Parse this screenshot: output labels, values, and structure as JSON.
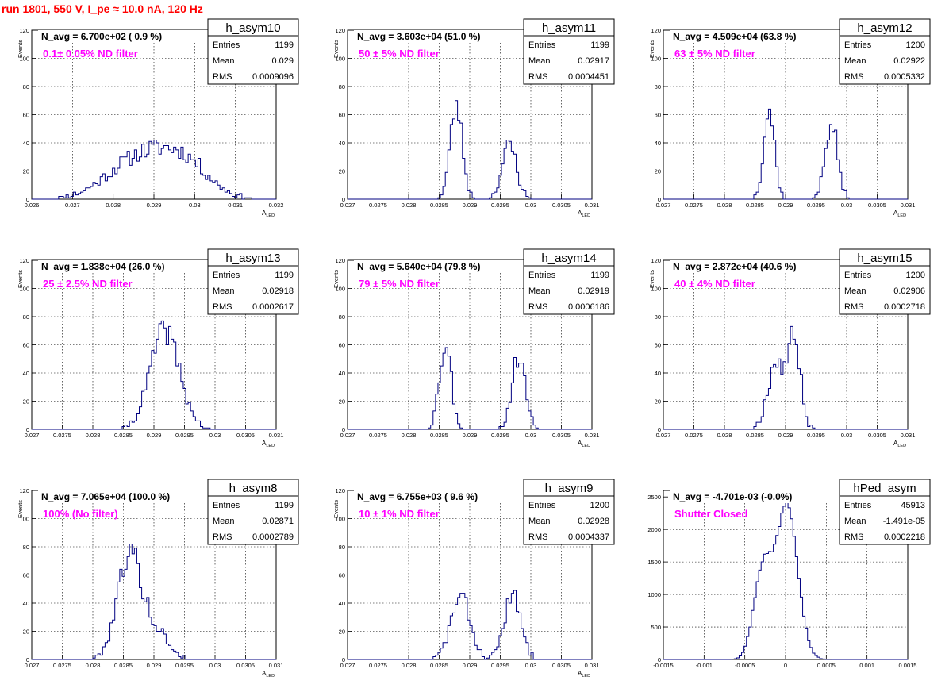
{
  "run_title": "run 1801,   550 V, I_pe ≈ 10.0 nA, 120 Hz",
  "chart_data": [
    {
      "type": "bar",
      "histogram": "h_asym10",
      "nav": "N_avg = 6.700e+02 ( 0.9 %)",
      "filter": "0.1± 0.05% ND filter",
      "stats": {
        "Entries": "1199",
        "Mean": "0.029",
        "RMS": "0.0009096"
      },
      "xlabel": "A_LED",
      "ylabel": "Events",
      "xlim": [
        0.026,
        0.032
      ],
      "ylim": [
        0,
        120
      ],
      "xticks": [
        "0.026",
        "0.027",
        "0.028",
        "0.029",
        "0.03",
        "0.031",
        "0.032"
      ],
      "yticks": [
        "0",
        "20",
        "40",
        "60",
        "80",
        "100",
        "120"
      ],
      "grid": true,
      "profile": [
        {
          "mu": 0.0287,
          "sigma": 0.0008,
          "amp": 30
        },
        {
          "mu": 0.0298,
          "sigma": 0.0006,
          "amp": 20
        }
      ],
      "bins": 100,
      "seed": 11
    },
    {
      "type": "bar",
      "histogram": "h_asym11",
      "nav": "N_avg = 3.603e+04 (51.0 %)",
      "filter": "50 ± 5% ND filter",
      "stats": {
        "Entries": "1199",
        "Mean": "0.02917",
        "RMS": "0.0004451"
      },
      "xlabel": "A_LED",
      "ylabel": "Events",
      "xlim": [
        0.027,
        0.031
      ],
      "ylim": [
        0,
        120
      ],
      "xticks": [
        "0.027",
        "0.0275",
        "0.028",
        "0.0285",
        "0.029",
        "0.0295",
        "0.03",
        "0.0305",
        "0.031"
      ],
      "yticks": [
        "0",
        "20",
        "40",
        "60",
        "80",
        "100",
        "120"
      ],
      "grid": true,
      "profile": [
        {
          "mu": 0.02878,
          "sigma": 0.0001,
          "amp": 66
        },
        {
          "mu": 0.02965,
          "sigma": 0.00012,
          "amp": 38
        }
      ],
      "bins": 100,
      "seed": 23
    },
    {
      "type": "bar",
      "histogram": "h_asym12",
      "nav": "N_avg = 4.509e+04 (63.8 %)",
      "filter": "63 ± 5% ND filter",
      "stats": {
        "Entries": "1200",
        "Mean": "0.02922",
        "RMS": "0.0005332"
      },
      "xlabel": "A_LED",
      "ylabel": "Events",
      "xlim": [
        0.027,
        0.031
      ],
      "ylim": [
        0,
        120
      ],
      "xticks": [
        "0.027",
        "0.0275",
        "0.028",
        "0.0285",
        "0.029",
        "0.0295",
        "0.03",
        "0.0305",
        "0.031"
      ],
      "yticks": [
        "0",
        "20",
        "40",
        "60",
        "80",
        "100",
        "120"
      ],
      "grid": true,
      "profile": [
        {
          "mu": 0.02873,
          "sigma": 9e-05,
          "amp": 64
        },
        {
          "mu": 0.02975,
          "sigma": 0.0001,
          "amp": 55
        }
      ],
      "bins": 100,
      "seed": 37
    },
    {
      "type": "bar",
      "histogram": "h_asym13",
      "nav": "N_avg = 1.838e+04 (26.0 %)",
      "filter": "25 ± 2.5% ND filter",
      "stats": {
        "Entries": "1199",
        "Mean": "0.02918",
        "RMS": "0.0002617"
      },
      "xlabel": "A_LED",
      "ylabel": "Events",
      "xlim": [
        0.027,
        0.031
      ],
      "ylim": [
        0,
        120
      ],
      "xticks": [
        "0.027",
        "0.0275",
        "0.028",
        "0.0285",
        "0.029",
        "0.0295",
        "0.03",
        "0.0305",
        "0.031"
      ],
      "yticks": [
        "0",
        "20",
        "40",
        "60",
        "80",
        "100",
        "120"
      ],
      "grid": true,
      "profile": [
        {
          "mu": 0.02918,
          "sigma": 0.00024,
          "amp": 70
        }
      ],
      "bins": 100,
      "seed": 41
    },
    {
      "type": "bar",
      "histogram": "h_asym14",
      "nav": "N_avg = 5.640e+04 (79.8 %)",
      "filter": "79 ± 5% ND filter",
      "stats": {
        "Entries": "1199",
        "Mean": "0.02919",
        "RMS": "0.0006186"
      },
      "xlabel": "A_LED",
      "ylabel": "Events",
      "xlim": [
        0.027,
        0.031
      ],
      "ylim": [
        0,
        120
      ],
      "xticks": [
        "0.027",
        "0.0275",
        "0.028",
        "0.0285",
        "0.029",
        "0.0295",
        "0.03",
        "0.0305",
        "0.031"
      ],
      "yticks": [
        "0",
        "20",
        "40",
        "60",
        "80",
        "100",
        "120"
      ],
      "grid": true,
      "profile": [
        {
          "mu": 0.0286,
          "sigma": 0.0001,
          "amp": 60
        },
        {
          "mu": 0.0298,
          "sigma": 0.00011,
          "amp": 52
        }
      ],
      "bins": 100,
      "seed": 53
    },
    {
      "type": "bar",
      "histogram": "h_asym15",
      "nav": "N_avg = 2.872e+04 (40.6 %)",
      "filter": "40 ± 4% ND filter",
      "stats": {
        "Entries": "1200",
        "Mean": "0.02906",
        "RMS": "0.0002718"
      },
      "xlabel": "A_LED",
      "ylabel": "Events",
      "xlim": [
        0.027,
        0.031
      ],
      "ylim": [
        0,
        120
      ],
      "xticks": [
        "0.027",
        "0.0275",
        "0.028",
        "0.0285",
        "0.029",
        "0.0295",
        "0.03",
        "0.0305",
        "0.031"
      ],
      "yticks": [
        "0",
        "20",
        "40",
        "60",
        "80",
        "100",
        "120"
      ],
      "grid": true,
      "profile": [
        {
          "mu": 0.02885,
          "sigma": 0.00014,
          "amp": 48
        },
        {
          "mu": 0.02915,
          "sigma": 0.0001,
          "amp": 62
        }
      ],
      "bins": 100,
      "seed": 67
    },
    {
      "type": "bar",
      "histogram": "h_asym8",
      "nav": "N_avg = 7.065e+04 (100.0 %)",
      "filter": "100% (No filter)",
      "stats": {
        "Entries": "1199",
        "Mean": "0.02871",
        "RMS": "0.0002789"
      },
      "xlabel": "A_LED",
      "ylabel": "Events",
      "xlim": [
        0.027,
        0.031
      ],
      "ylim": [
        0,
        120
      ],
      "xticks": [
        "0.027",
        "0.0275",
        "0.028",
        "0.0285",
        "0.029",
        "0.0295",
        "0.03",
        "0.0305",
        "0.031"
      ],
      "yticks": [
        "0",
        "20",
        "40",
        "60",
        "80",
        "100",
        "120"
      ],
      "grid": true,
      "profile": [
        {
          "mu": 0.0286,
          "sigma": 0.0002,
          "amp": 75
        },
        {
          "mu": 0.02905,
          "sigma": 0.0002,
          "amp": 18
        }
      ],
      "bins": 100,
      "seed": 79
    },
    {
      "type": "bar",
      "histogram": "h_asym9",
      "nav": "N_avg = 6.755e+03 ( 9.6 %)",
      "filter": "10 ± 1% ND filter",
      "stats": {
        "Entries": "1200",
        "Mean": "0.02928",
        "RMS": "0.0004337"
      },
      "xlabel": "A_LED",
      "ylabel": "Events",
      "xlim": [
        0.027,
        0.031
      ],
      "ylim": [
        0,
        120
      ],
      "xticks": [
        "0.027",
        "0.0275",
        "0.028",
        "0.0285",
        "0.029",
        "0.0295",
        "0.03",
        "0.0305",
        "0.031"
      ],
      "yticks": [
        "0",
        "20",
        "40",
        "60",
        "80",
        "100",
        "120"
      ],
      "grid": true,
      "profile": [
        {
          "mu": 0.02885,
          "sigma": 0.00016,
          "amp": 44
        },
        {
          "mu": 0.0297,
          "sigma": 0.00014,
          "amp": 44
        }
      ],
      "bins": 100,
      "seed": 83
    },
    {
      "type": "bar",
      "histogram": "hPed_asym",
      "nav": "N_avg = -4.701e-03 (-0.0%)",
      "filter": "Shutter Closed",
      "stats": {
        "Entries": "45913",
        "Mean": "-1.491e-05",
        "RMS": "0.0002218"
      },
      "xlabel": "",
      "ylabel": "",
      "xlim": [
        -0.0015,
        0.0015
      ],
      "ylim": [
        0,
        2600
      ],
      "xticks": [
        "-0.0015",
        "-0.001",
        "-0.0005",
        "0",
        "0.0005",
        "0.001",
        "0.0015"
      ],
      "yticks": [
        "0",
        "500",
        "1000",
        "1500",
        "2000",
        "2500"
      ],
      "grid": true,
      "profile": [
        {
          "mu": -0.00028,
          "sigma": 0.00011,
          "amp": 1380
        },
        {
          "mu": 2e-05,
          "sigma": 0.00013,
          "amp": 2400
        }
      ],
      "bins": 100,
      "seed": 97
    }
  ],
  "colors": {
    "title": "#ff0000",
    "filter_text": "#ff00ff",
    "histogram_line": "#000080",
    "grid": "#000000"
  }
}
